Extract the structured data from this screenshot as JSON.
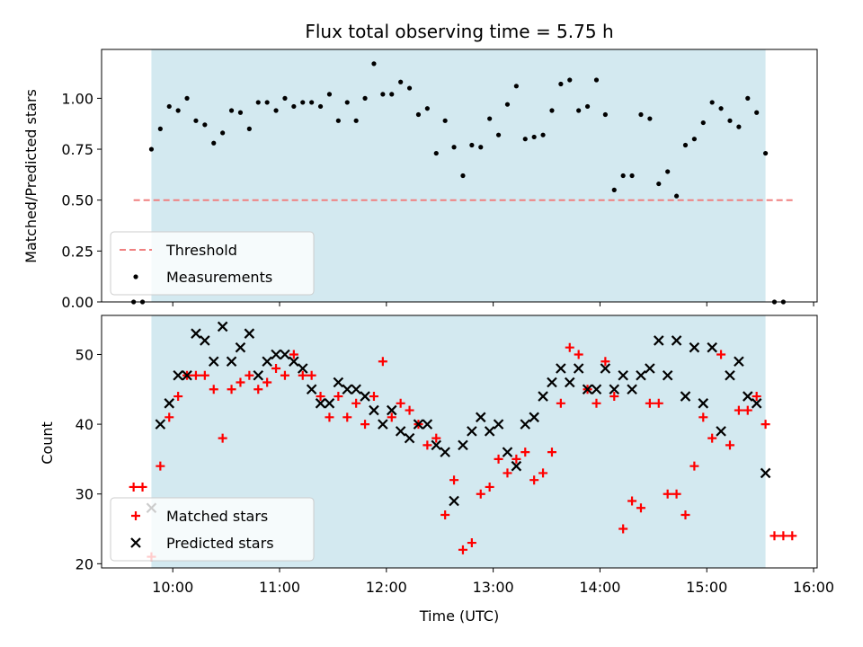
{
  "chart_data": [
    {
      "type": "scatter",
      "title": "Flux total observing time = 5.75 h",
      "xlabel": "",
      "ylabel": "Matched/Predicted stars",
      "xlim": [
        "09:20",
        "16:02"
      ],
      "ylim": [
        0,
        1.24
      ],
      "yticks": [
        "0.00",
        "0.25",
        "0.50",
        "0.75",
        "1.00"
      ],
      "shaded_span": {
        "start": "09:48",
        "end": "15:33",
        "color": "#d3e9f0"
      },
      "threshold": {
        "name": "Threshold",
        "value": 0.5,
        "x_start": "09:38",
        "x_end": "15:49",
        "color": "#f08080"
      },
      "legend": [
        "Threshold",
        "Measurements"
      ],
      "legend_position": "lower-left",
      "series": [
        {
          "name": "Measurements",
          "color": "#000000",
          "marker": "dot",
          "points": [
            [
              "09:38",
              0.0
            ],
            [
              "09:43",
              0.0
            ],
            [
              "09:48",
              0.75
            ],
            [
              "09:53",
              0.85
            ],
            [
              "09:58",
              0.96
            ],
            [
              "10:03",
              0.94
            ],
            [
              "10:08",
              1.0
            ],
            [
              "10:13",
              0.89
            ],
            [
              "10:18",
              0.87
            ],
            [
              "10:23",
              0.78
            ],
            [
              "10:28",
              0.83
            ],
            [
              "10:33",
              0.94
            ],
            [
              "10:38",
              0.93
            ],
            [
              "10:43",
              0.85
            ],
            [
              "10:48",
              0.98
            ],
            [
              "10:53",
              0.98
            ],
            [
              "10:58",
              0.94
            ],
            [
              "11:03",
              1.0
            ],
            [
              "11:08",
              0.96
            ],
            [
              "11:13",
              0.98
            ],
            [
              "11:18",
              0.98
            ],
            [
              "11:23",
              0.96
            ],
            [
              "11:28",
              1.02
            ],
            [
              "11:33",
              0.89
            ],
            [
              "11:38",
              0.98
            ],
            [
              "11:43",
              0.89
            ],
            [
              "11:48",
              1.0
            ],
            [
              "11:53",
              1.17
            ],
            [
              "11:58",
              1.02
            ],
            [
              "12:03",
              1.02
            ],
            [
              "12:08",
              1.08
            ],
            [
              "12:13",
              1.05
            ],
            [
              "12:18",
              0.92
            ],
            [
              "12:23",
              0.95
            ],
            [
              "12:28",
              0.73
            ],
            [
              "12:33",
              0.89
            ],
            [
              "12:38",
              0.76
            ],
            [
              "12:43",
              0.62
            ],
            [
              "12:48",
              0.77
            ],
            [
              "12:53",
              0.76
            ],
            [
              "12:58",
              0.9
            ],
            [
              "13:03",
              0.82
            ],
            [
              "13:08",
              0.97
            ],
            [
              "13:13",
              1.06
            ],
            [
              "13:18",
              0.8
            ],
            [
              "13:23",
              0.81
            ],
            [
              "13:28",
              0.82
            ],
            [
              "13:33",
              0.94
            ],
            [
              "13:38",
              1.07
            ],
            [
              "13:43",
              1.09
            ],
            [
              "13:48",
              0.94
            ],
            [
              "13:53",
              0.96
            ],
            [
              "13:58",
              1.09
            ],
            [
              "14:03",
              0.92
            ],
            [
              "14:08",
              0.55
            ],
            [
              "14:13",
              0.62
            ],
            [
              "14:18",
              0.62
            ],
            [
              "14:23",
              0.92
            ],
            [
              "14:28",
              0.9
            ],
            [
              "14:33",
              0.58
            ],
            [
              "14:38",
              0.64
            ],
            [
              "14:43",
              0.52
            ],
            [
              "14:48",
              0.77
            ],
            [
              "14:53",
              0.8
            ],
            [
              "14:58",
              0.88
            ],
            [
              "15:03",
              0.98
            ],
            [
              "15:08",
              0.95
            ],
            [
              "15:13",
              0.89
            ],
            [
              "15:18",
              0.86
            ],
            [
              "15:23",
              1.0
            ],
            [
              "15:28",
              0.93
            ],
            [
              "15:33",
              0.73
            ],
            [
              "15:38",
              0.0
            ],
            [
              "15:43",
              0.0
            ]
          ]
        }
      ]
    },
    {
      "type": "scatter",
      "title": "",
      "xlabel": "Time (UTC)",
      "ylabel": "Count",
      "xlim": [
        "09:20",
        "16:02"
      ],
      "ylim": [
        19.4,
        55.6
      ],
      "yticks": [
        "20",
        "30",
        "40",
        "50"
      ],
      "xticks": [
        "10:00",
        "11:00",
        "12:00",
        "13:00",
        "14:00",
        "15:00",
        "16:00"
      ],
      "shaded_span": {
        "start": "09:48",
        "end": "15:33",
        "color": "#d3e9f0"
      },
      "legend": [
        "Matched stars",
        "Predicted stars"
      ],
      "legend_position": "lower-left",
      "series": [
        {
          "name": "Matched stars",
          "color": "#ff0000",
          "marker": "plus",
          "points": [
            [
              "09:38",
              31
            ],
            [
              "09:43",
              31
            ],
            [
              "09:48",
              21
            ],
            [
              "09:53",
              34
            ],
            [
              "09:58",
              41
            ],
            [
              "10:03",
              44
            ],
            [
              "10:08",
              47
            ],
            [
              "10:13",
              47
            ],
            [
              "10:18",
              47
            ],
            [
              "10:23",
              45
            ],
            [
              "10:28",
              38
            ],
            [
              "10:33",
              45
            ],
            [
              "10:38",
              46
            ],
            [
              "10:43",
              47
            ],
            [
              "10:48",
              45
            ],
            [
              "10:53",
              46
            ],
            [
              "10:58",
              48
            ],
            [
              "11:03",
              47
            ],
            [
              "11:08",
              50
            ],
            [
              "11:13",
              47
            ],
            [
              "11:18",
              47
            ],
            [
              "11:23",
              44
            ],
            [
              "11:28",
              41
            ],
            [
              "11:33",
              44
            ],
            [
              "11:38",
              41
            ],
            [
              "11:43",
              43
            ],
            [
              "11:48",
              40
            ],
            [
              "11:53",
              44
            ],
            [
              "11:58",
              49
            ],
            [
              "12:03",
              41
            ],
            [
              "12:08",
              43
            ],
            [
              "12:13",
              42
            ],
            [
              "12:18",
              40
            ],
            [
              "12:23",
              37
            ],
            [
              "12:28",
              38
            ],
            [
              "12:33",
              27
            ],
            [
              "12:38",
              32
            ],
            [
              "12:43",
              22
            ],
            [
              "12:48",
              23
            ],
            [
              "12:53",
              30
            ],
            [
              "12:58",
              31
            ],
            [
              "13:03",
              35
            ],
            [
              "13:08",
              33
            ],
            [
              "13:13",
              35
            ],
            [
              "13:18",
              36
            ],
            [
              "13:23",
              32
            ],
            [
              "13:28",
              33
            ],
            [
              "13:33",
              36
            ],
            [
              "13:38",
              43
            ],
            [
              "13:43",
              51
            ],
            [
              "13:48",
              50
            ],
            [
              "13:53",
              45
            ],
            [
              "13:58",
              43
            ],
            [
              "14:03",
              49
            ],
            [
              "14:08",
              44
            ],
            [
              "14:13",
              25
            ],
            [
              "14:18",
              29
            ],
            [
              "14:23",
              28
            ],
            [
              "14:28",
              43
            ],
            [
              "14:33",
              43
            ],
            [
              "14:38",
              30
            ],
            [
              "14:43",
              30
            ],
            [
              "14:48",
              27
            ],
            [
              "14:53",
              34
            ],
            [
              "14:58",
              41
            ],
            [
              "15:03",
              38
            ],
            [
              "15:08",
              50
            ],
            [
              "15:13",
              37
            ],
            [
              "15:18",
              42
            ],
            [
              "15:23",
              42
            ],
            [
              "15:28",
              44
            ],
            [
              "15:33",
              40
            ],
            [
              "15:38",
              24
            ],
            [
              "15:43",
              24
            ],
            [
              "15:48",
              24
            ]
          ]
        },
        {
          "name": "Predicted stars",
          "color": "#000000",
          "marker": "x",
          "points": [
            [
              "09:48",
              28
            ],
            [
              "09:53",
              40
            ],
            [
              "09:58",
              43
            ],
            [
              "10:03",
              47
            ],
            [
              "10:08",
              47
            ],
            [
              "10:13",
              53
            ],
            [
              "10:18",
              52
            ],
            [
              "10:23",
              49
            ],
            [
              "10:28",
              54
            ],
            [
              "10:33",
              49
            ],
            [
              "10:38",
              51
            ],
            [
              "10:43",
              53
            ],
            [
              "10:48",
              47
            ],
            [
              "10:53",
              49
            ],
            [
              "10:58",
              50
            ],
            [
              "11:03",
              50
            ],
            [
              "11:08",
              49
            ],
            [
              "11:13",
              48
            ],
            [
              "11:18",
              45
            ],
            [
              "11:23",
              43
            ],
            [
              "11:28",
              43
            ],
            [
              "11:33",
              46
            ],
            [
              "11:38",
              45
            ],
            [
              "11:43",
              45
            ],
            [
              "11:48",
              44
            ],
            [
              "11:53",
              42
            ],
            [
              "11:58",
              40
            ],
            [
              "12:03",
              42
            ],
            [
              "12:08",
              39
            ],
            [
              "12:13",
              38
            ],
            [
              "12:18",
              40
            ],
            [
              "12:23",
              40
            ],
            [
              "12:28",
              37
            ],
            [
              "12:33",
              36
            ],
            [
              "12:38",
              29
            ],
            [
              "12:43",
              37
            ],
            [
              "12:48",
              39
            ],
            [
              "12:53",
              41
            ],
            [
              "12:58",
              39
            ],
            [
              "13:03",
              40
            ],
            [
              "13:08",
              36
            ],
            [
              "13:13",
              34
            ],
            [
              "13:18",
              40
            ],
            [
              "13:23",
              41
            ],
            [
              "13:28",
              44
            ],
            [
              "13:33",
              46
            ],
            [
              "13:38",
              48
            ],
            [
              "13:43",
              46
            ],
            [
              "13:48",
              48
            ],
            [
              "13:53",
              45
            ],
            [
              "13:58",
              45
            ],
            [
              "14:03",
              48
            ],
            [
              "14:08",
              45
            ],
            [
              "14:13",
              47
            ],
            [
              "14:18",
              45
            ],
            [
              "14:23",
              47
            ],
            [
              "14:28",
              48
            ],
            [
              "14:33",
              52
            ],
            [
              "14:38",
              47
            ],
            [
              "14:43",
              52
            ],
            [
              "14:48",
              44
            ],
            [
              "14:53",
              51
            ],
            [
              "14:58",
              43
            ],
            [
              "15:03",
              51
            ],
            [
              "15:08",
              39
            ],
            [
              "15:13",
              47
            ],
            [
              "15:18",
              49
            ],
            [
              "15:23",
              44
            ],
            [
              "15:28",
              43
            ],
            [
              "15:33",
              33
            ]
          ]
        }
      ]
    }
  ]
}
